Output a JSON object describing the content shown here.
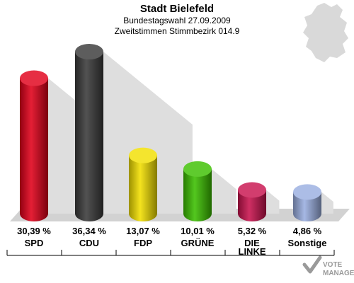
{
  "chart_data": {
    "type": "bar",
    "title": "Stadt Bielefeld",
    "subtitle_lines": [
      "Bundestagswahl 27.09.2009",
      "Zweitstimmen Stimmbezirk 014.9"
    ],
    "categories": [
      "SPD",
      "CDU",
      "FDP",
      "GRÜNE",
      "DIE LINKE",
      "Sonstige"
    ],
    "category_lines": [
      [
        "SPD"
      ],
      [
        "CDU"
      ],
      [
        "FDP"
      ],
      [
        "GRÜNE"
      ],
      [
        "DIE",
        "LINKE"
      ],
      [
        "Sonstige"
      ]
    ],
    "values": [
      30.39,
      36.34,
      13.07,
      10.01,
      5.32,
      4.86
    ],
    "value_labels": [
      "30,39 %",
      "36,34 %",
      "13,07 %",
      "10,01 %",
      "5,32 %",
      "4,86 %"
    ],
    "colors": [
      "#e0001a",
      "#3a3a3a",
      "#f2df00",
      "#3cbf00",
      "#c8134e",
      "#9aaee0"
    ],
    "grid": false,
    "legend": "none"
  },
  "watermark": {
    "line1": "VOTE",
    "line2": "MANAGER"
  },
  "decor": {
    "map_color": "#d9d9d9",
    "floor_color": "#d2d2d2",
    "shadow_color": "#dedede"
  }
}
